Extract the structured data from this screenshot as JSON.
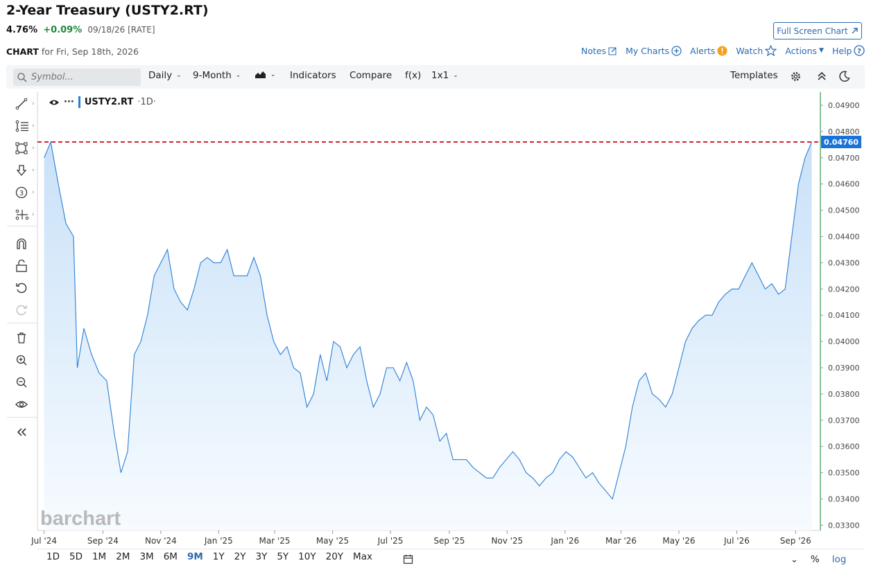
{
  "header": {
    "title": "2-Year Treasury (USTY2.RT)",
    "price": "4.76%",
    "change": "+0.09%",
    "meta": "09/18/26 [RATE]",
    "fullscreen_label": "Full Screen Chart",
    "chart_label": "CHART",
    "chart_for": "for Fri, Sep 18th, 2026"
  },
  "toplinks": {
    "notes": "Notes",
    "my_charts": "My Charts",
    "alerts": "Alerts",
    "watch": "Watch",
    "actions": "Actions",
    "help": "Help"
  },
  "toolbar": {
    "search_placeholder": "Symbol...",
    "interval": "Daily",
    "period": "9-Month",
    "indicators": "Indicators",
    "compare": "Compare",
    "fx": "f(x)",
    "layout": "1x1",
    "templates": "Templates"
  },
  "legend": {
    "symbol": "USTY2.RT",
    "interval": "·1D·"
  },
  "watermark": "barchart",
  "bottom": {
    "ranges": [
      "1D",
      "5D",
      "1M",
      "2M",
      "3M",
      "6M",
      "9M",
      "1Y",
      "2Y",
      "3Y",
      "5Y",
      "10Y",
      "20Y",
      "Max"
    ],
    "active_range": "9M",
    "percent": "%",
    "log": "log"
  },
  "colors": {
    "line": "#2a7fd4",
    "area_top": "#cfe5f9",
    "last_price": "#1a73d9",
    "price_line": "#d6202c",
    "axis_border": "#3a9a5a"
  },
  "chart_data": {
    "type": "area",
    "title": "",
    "xlabel": "",
    "ylabel": "",
    "ylim": [
      0.0328,
      0.0495
    ],
    "x_ticks": [
      "Jul '24",
      "Sep '24",
      "Nov '24",
      "Jan '25",
      "Mar '25",
      "May '25",
      "Jul '25",
      "Sep '25",
      "Nov '25",
      "Jan '26",
      "Mar '26",
      "May '26",
      "Jul '26",
      "Sep '26"
    ],
    "y_ticks": [
      "0.04900",
      "0.04800",
      "0.04700",
      "0.04600",
      "0.04500",
      "0.04400",
      "0.04300",
      "0.04200",
      "0.04100",
      "0.04000",
      "0.03900",
      "0.03800",
      "0.03700",
      "0.03600",
      "0.03500",
      "0.03400",
      "0.03300"
    ],
    "last_value": 0.0476,
    "last_value_label": "0.04760",
    "x": [
      "2024-07-01",
      "2024-07-08",
      "2024-07-16",
      "2024-07-24",
      "2024-08-01",
      "2024-08-05",
      "2024-08-12",
      "2024-08-20",
      "2024-08-28",
      "2024-09-05",
      "2024-09-13",
      "2024-09-20",
      "2024-09-27",
      "2024-10-04",
      "2024-10-11",
      "2024-10-18",
      "2024-10-25",
      "2024-11-01",
      "2024-11-08",
      "2024-11-15",
      "2024-11-22",
      "2024-11-29",
      "2024-12-06",
      "2024-12-13",
      "2024-12-20",
      "2024-12-27",
      "2025-01-03",
      "2025-01-10",
      "2025-01-17",
      "2025-01-24",
      "2025-01-31",
      "2025-02-07",
      "2025-02-14",
      "2025-02-21",
      "2025-02-28",
      "2025-03-07",
      "2025-03-14",
      "2025-03-21",
      "2025-03-28",
      "2025-04-04",
      "2025-04-11",
      "2025-04-18",
      "2025-04-25",
      "2025-05-02",
      "2025-05-09",
      "2025-05-16",
      "2025-05-23",
      "2025-05-30",
      "2025-06-06",
      "2025-06-13",
      "2025-06-20",
      "2025-06-27",
      "2025-07-04",
      "2025-07-11",
      "2025-07-18",
      "2025-07-25",
      "2025-08-01",
      "2025-08-08",
      "2025-08-15",
      "2025-08-22",
      "2025-08-29",
      "2025-09-05",
      "2025-09-12",
      "2025-09-19",
      "2025-09-26",
      "2025-10-03",
      "2025-10-10",
      "2025-10-17",
      "2025-10-24",
      "2025-10-31",
      "2025-11-07",
      "2025-11-14",
      "2025-11-21",
      "2025-11-28",
      "2025-12-05",
      "2025-12-12",
      "2025-12-19",
      "2025-12-26",
      "2026-01-02",
      "2026-01-09",
      "2026-01-16",
      "2026-01-23",
      "2026-01-30",
      "2026-02-06",
      "2026-02-13",
      "2026-02-20",
      "2026-02-27",
      "2026-03-06",
      "2026-03-13",
      "2026-03-20",
      "2026-03-27",
      "2026-04-03",
      "2026-04-10",
      "2026-04-17",
      "2026-04-24",
      "2026-05-01",
      "2026-05-08",
      "2026-05-15",
      "2026-05-22",
      "2026-05-29",
      "2026-06-05",
      "2026-06-12",
      "2026-06-19",
      "2026-06-26",
      "2026-07-03",
      "2026-07-10",
      "2026-07-17",
      "2026-07-24",
      "2026-07-31",
      "2026-08-07",
      "2026-08-14",
      "2026-08-21",
      "2026-08-28",
      "2026-09-04",
      "2026-09-11",
      "2026-09-18"
    ],
    "values": [
      0.047,
      0.0476,
      0.046,
      0.0445,
      0.044,
      0.039,
      0.0405,
      0.0395,
      0.0388,
      0.0385,
      0.0365,
      0.035,
      0.0358,
      0.0395,
      0.04,
      0.041,
      0.0425,
      0.043,
      0.0435,
      0.042,
      0.0415,
      0.0412,
      0.042,
      0.043,
      0.0432,
      0.043,
      0.043,
      0.0435,
      0.0425,
      0.0425,
      0.0425,
      0.0432,
      0.0425,
      0.041,
      0.04,
      0.0395,
      0.0398,
      0.039,
      0.0388,
      0.0375,
      0.038,
      0.0395,
      0.0385,
      0.04,
      0.0398,
      0.039,
      0.0395,
      0.0398,
      0.0385,
      0.0375,
      0.038,
      0.039,
      0.039,
      0.0385,
      0.0392,
      0.0385,
      0.037,
      0.0375,
      0.0372,
      0.0362,
      0.0365,
      0.0355,
      0.0355,
      0.0355,
      0.0352,
      0.035,
      0.0348,
      0.0348,
      0.0352,
      0.0355,
      0.0358,
      0.0355,
      0.035,
      0.0348,
      0.0345,
      0.0348,
      0.035,
      0.0355,
      0.0358,
      0.0356,
      0.0352,
      0.0348,
      0.035,
      0.0346,
      0.0343,
      0.034,
      0.035,
      0.036,
      0.0375,
      0.0385,
      0.0388,
      0.038,
      0.0378,
      0.0375,
      0.038,
      0.039,
      0.04,
      0.0405,
      0.0408,
      0.041,
      0.041,
      0.0415,
      0.0418,
      0.042,
      0.042,
      0.0425,
      0.043,
      0.0425,
      0.042,
      0.0422,
      0.0418,
      0.042,
      0.044,
      0.046,
      0.047,
      0.0476
    ]
  }
}
